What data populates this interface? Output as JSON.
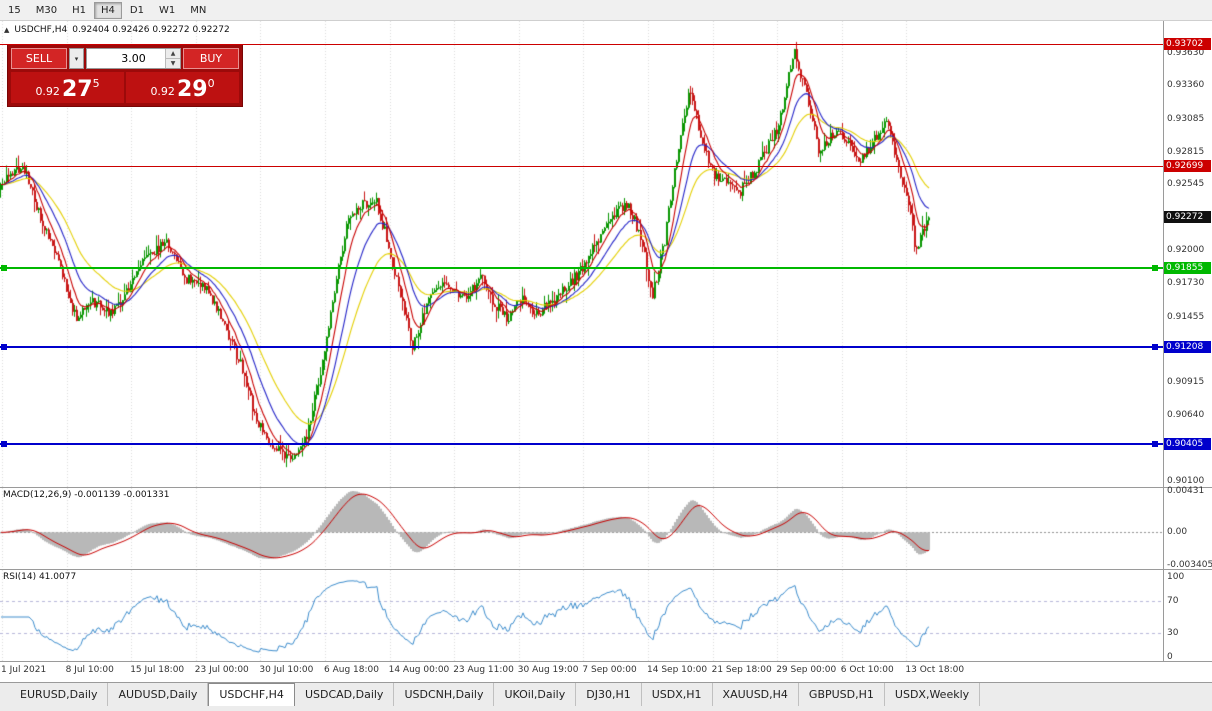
{
  "toolbar": {
    "timeframes": [
      "15",
      "M30",
      "H1",
      "H4",
      "D1",
      "W1",
      "MN"
    ],
    "active": "H4"
  },
  "icons": {
    "caret_down": "▾",
    "spinner_up": "▲",
    "spinner_down": "▼",
    "symbol_arrow": "▲"
  },
  "chart": {
    "header": {
      "symbol": "USDCHF,H4",
      "ohlc": "0.92404 0.92426 0.92272 0.92272"
    },
    "trade_panel": {
      "sell_label": "SELL",
      "buy_label": "BUY",
      "volume": "3.00",
      "sell_price_prefix": "0.92",
      "sell_price_big": "27",
      "sell_price_sup": "5",
      "buy_price_prefix": "0.92",
      "buy_price_big": "29",
      "buy_price_sup": "0"
    }
  },
  "indicators_ui": {
    "macd_label": "MACD(12,26,9) -0.001139 -0.001331",
    "macd_axis": [
      "0.00431",
      "0.00",
      "-0.003405"
    ],
    "rsi_label": "RSI(14) 41.0077",
    "rsi_axis": [
      "100",
      "70",
      "30",
      "0"
    ]
  },
  "tabs": {
    "items": [
      "EURUSD,Daily",
      "AUDUSD,Daily",
      "USDCHF,H4",
      "USDCAD,Daily",
      "USDCNH,Daily",
      "UKOil,Daily",
      "DJ30,H1",
      "USDX,H1",
      "XAUUSD,H4",
      "GBPUSD,H1",
      "USDX,Weekly"
    ],
    "active": "USDCHF,H4"
  },
  "chart_data": {
    "type": "candlestick",
    "symbol": "USDCHF",
    "timeframe": "H4",
    "visible_range": {
      "start": "1 Jul 2021",
      "end": "13 Oct 2021"
    },
    "ohlc_display": {
      "open": 0.92404,
      "high": 0.92426,
      "low": 0.92272,
      "close": 0.92272
    },
    "current_price": 0.92272,
    "bars": 465,
    "candle_colors": {
      "up": "#089600",
      "down": "#c81616"
    },
    "price_path": [
      [
        0.0,
        0.925
      ],
      [
        0.012,
        0.9265
      ],
      [
        0.025,
        0.9268
      ],
      [
        0.04,
        0.9235
      ],
      [
        0.06,
        0.9195
      ],
      [
        0.082,
        0.9143
      ],
      [
        0.1,
        0.9158
      ],
      [
        0.118,
        0.9148
      ],
      [
        0.14,
        0.917
      ],
      [
        0.158,
        0.9196
      ],
      [
        0.178,
        0.9206
      ],
      [
        0.198,
        0.9178
      ],
      [
        0.22,
        0.917
      ],
      [
        0.24,
        0.914
      ],
      [
        0.258,
        0.9108
      ],
      [
        0.275,
        0.9062
      ],
      [
        0.292,
        0.904
      ],
      [
        0.308,
        0.903
      ],
      [
        0.318,
        0.9028
      ],
      [
        0.33,
        0.9048
      ],
      [
        0.345,
        0.91
      ],
      [
        0.36,
        0.9168
      ],
      [
        0.375,
        0.9228
      ],
      [
        0.39,
        0.9238
      ],
      [
        0.405,
        0.924
      ],
      [
        0.418,
        0.9205
      ],
      [
        0.43,
        0.9165
      ],
      [
        0.444,
        0.9122
      ],
      [
        0.458,
        0.9152
      ],
      [
        0.472,
        0.9173
      ],
      [
        0.487,
        0.9164
      ],
      [
        0.502,
        0.9158
      ],
      [
        0.517,
        0.918
      ],
      [
        0.532,
        0.9157
      ],
      [
        0.547,
        0.9143
      ],
      [
        0.562,
        0.9162
      ],
      [
        0.577,
        0.9147
      ],
      [
        0.594,
        0.9157
      ],
      [
        0.612,
        0.9172
      ],
      [
        0.628,
        0.9186
      ],
      [
        0.645,
        0.9212
      ],
      [
        0.662,
        0.9232
      ],
      [
        0.676,
        0.9238
      ],
      [
        0.69,
        0.9212
      ],
      [
        0.702,
        0.9162
      ],
      [
        0.715,
        0.9205
      ],
      [
        0.728,
        0.9275
      ],
      [
        0.742,
        0.933
      ],
      [
        0.755,
        0.9295
      ],
      [
        0.769,
        0.9262
      ],
      [
        0.782,
        0.9255
      ],
      [
        0.796,
        0.9248
      ],
      [
        0.81,
        0.9262
      ],
      [
        0.824,
        0.9282
      ],
      [
        0.838,
        0.9302
      ],
      [
        0.855,
        0.9365
      ],
      [
        0.868,
        0.933
      ],
      [
        0.882,
        0.9282
      ],
      [
        0.903,
        0.93
      ],
      [
        0.915,
        0.9288
      ],
      [
        0.925,
        0.9272
      ],
      [
        0.94,
        0.929
      ],
      [
        0.955,
        0.9305
      ],
      [
        0.968,
        0.927
      ],
      [
        0.978,
        0.924
      ],
      [
        0.986,
        0.92
      ],
      [
        1.0,
        0.9227
      ]
    ],
    "horizontal_levels": [
      {
        "price": 0.93702,
        "color": "#cc0000",
        "thick": 1,
        "markers": false
      },
      {
        "price": 0.92699,
        "color": "#cc0000",
        "thick": 1,
        "markers": false
      },
      {
        "price": 0.91855,
        "color": "#00b800",
        "thick": 2,
        "markers": true
      },
      {
        "price": 0.91208,
        "color": "#0000cc",
        "thick": 2,
        "markers": true
      },
      {
        "price": 0.90405,
        "color": "#0000cc",
        "thick": 2,
        "markers": true
      }
    ],
    "moving_averages": [
      {
        "period": 8,
        "color": "#c80000",
        "type": "ema"
      },
      {
        "period": 18,
        "color": "#2424c8",
        "type": "ema"
      },
      {
        "period": 34,
        "color": "#e3cf00",
        "type": "ema"
      }
    ],
    "indicators": [
      {
        "name": "MACD",
        "params": [
          12,
          26,
          9
        ],
        "values_shown": [
          -0.001139,
          -0.001331
        ],
        "axis": [
          0.00431,
          0.0,
          -0.003405
        ]
      },
      {
        "name": "RSI",
        "params": [
          14
        ],
        "value_shown": 41.0077,
        "axis": [
          100,
          70,
          30,
          0
        ],
        "levels": [
          70,
          30
        ]
      }
    ],
    "y_axis_labels": [
      "0.93630",
      "0.93360",
      "0.93085",
      "0.92815",
      "0.92545",
      "0.92275",
      "0.92000",
      "0.91730",
      "0.91455",
      "0.91185",
      "0.90915",
      "0.90640",
      "0.90370",
      "0.90100"
    ],
    "x_axis_labels": [
      "1 Jul 2021",
      "8 Jul 10:00",
      "15 Jul 18:00",
      "23 Jul 00:00",
      "30 Jul 10:00",
      "6 Aug 18:00",
      "14 Aug 00:00",
      "23 Aug 11:00",
      "30 Aug 19:00",
      "7 Sep 00:00",
      "14 Sep 10:00",
      "21 Sep 18:00",
      "29 Sep 00:00",
      "6 Oct 10:00",
      "13 Oct 18:00"
    ]
  }
}
